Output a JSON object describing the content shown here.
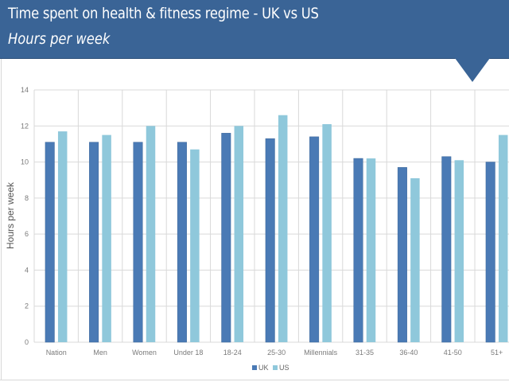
{
  "header": {
    "title": "Time spent on health & fitness regime - UK vs US",
    "subtitle": "Hours per week",
    "color": "#3a6496"
  },
  "chart_data": {
    "type": "bar",
    "title": "Time spent on health & fitness regime - UK vs US",
    "subtitle": "Hours per week",
    "xlabel": "",
    "ylabel": "Hours per week",
    "ylim": [
      0,
      14
    ],
    "yticks": [
      0,
      2,
      4,
      6,
      8,
      10,
      12,
      14
    ],
    "grid": true,
    "legend_position": "bottom-center",
    "categories": [
      "Nation",
      "Men",
      "Women",
      "Under 18",
      "18-24",
      "25-30",
      "Millennials",
      "31-35",
      "36-40",
      "41-50",
      "51+"
    ],
    "series": [
      {
        "name": "UK",
        "color": "#4a7ab5",
        "values": [
          11.1,
          11.1,
          11.1,
          11.1,
          11.6,
          11.3,
          11.4,
          10.2,
          9.7,
          10.3,
          10.0
        ]
      },
      {
        "name": "US",
        "color": "#8fc8db",
        "values": [
          11.7,
          11.5,
          12.0,
          10.7,
          12.0,
          12.6,
          12.1,
          10.2,
          9.1,
          10.1,
          11.5
        ]
      }
    ]
  }
}
